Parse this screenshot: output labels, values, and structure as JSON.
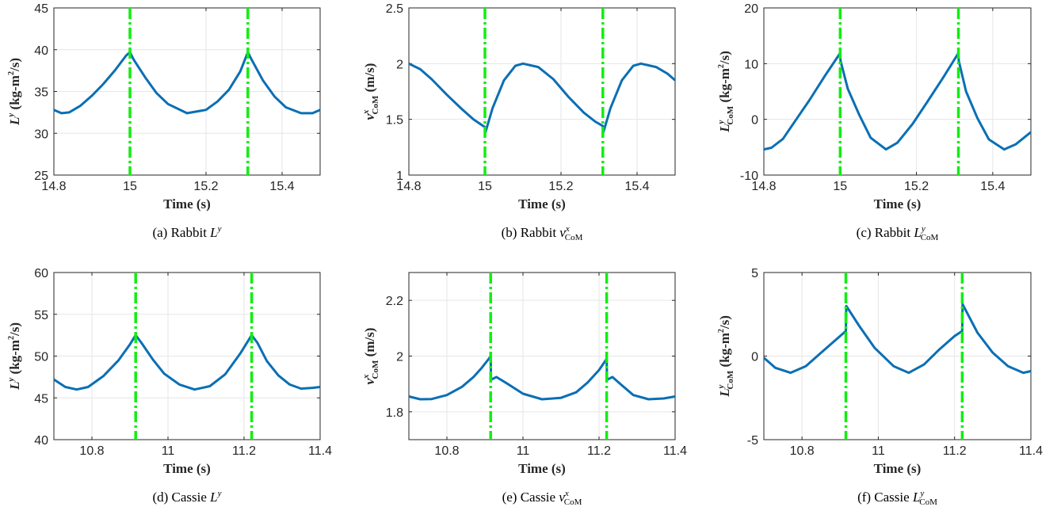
{
  "chart_data": [
    {
      "type": "line",
      "caption_prefix": "(a) Rabbit ",
      "caption_var": "L",
      "caption_sup": "y",
      "caption_sub": "",
      "xlabel": "Time (s)",
      "ylabel": "L^y (kg-m^2/s)",
      "ylabel_var": "L",
      "ylabel_sup": "y",
      "ylabel_sub": "",
      "ylabel_unit": "(kg-m",
      "ylabel_unit_sup": "2",
      "ylabel_unit_end": "/s)",
      "xlim": [
        14.8,
        15.5
      ],
      "ylim": [
        25,
        45
      ],
      "xticks": [
        14.8,
        15,
        15.2,
        15.4
      ],
      "xtick_labels": [
        "14.8",
        "15",
        "15.2",
        "15.4"
      ],
      "yticks": [
        25,
        30,
        35,
        40,
        45
      ],
      "ytick_labels": [
        "25",
        "30",
        "35",
        "40",
        "45"
      ],
      "event_lines_x": [
        15.0,
        15.31
      ],
      "series": [
        {
          "x": [
            14.8,
            14.82,
            14.84,
            14.87,
            14.9,
            14.93,
            14.96,
            14.99,
            15.0,
            15.01,
            15.04,
            15.07,
            15.1,
            15.15,
            15.2,
            15.23,
            15.26,
            15.29,
            15.31,
            15.32,
            15.35,
            15.38,
            15.41,
            15.45,
            15.48,
            15.5
          ],
          "y": [
            32.8,
            32.4,
            32.5,
            33.3,
            34.5,
            35.9,
            37.5,
            39.3,
            39.7,
            38.8,
            36.7,
            34.8,
            33.5,
            32.4,
            32.8,
            33.8,
            35.2,
            37.4,
            39.7,
            38.8,
            36.3,
            34.4,
            33.1,
            32.4,
            32.4,
            32.8
          ]
        }
      ]
    },
    {
      "type": "line",
      "caption_prefix": "(b) Rabbit ",
      "caption_var": "v",
      "caption_sup": "x",
      "caption_sub": "CoM",
      "xlabel": "Time (s)",
      "ylabel": "v^x_CoM (m/s)",
      "ylabel_var": "v",
      "ylabel_sup": "x",
      "ylabel_sub": "CoM",
      "ylabel_unit": "(m/s)",
      "ylabel_unit_sup": "",
      "ylabel_unit_end": "",
      "xlim": [
        14.8,
        15.5
      ],
      "ylim": [
        1,
        2.5
      ],
      "xticks": [
        14.8,
        15,
        15.2,
        15.4
      ],
      "xtick_labels": [
        "14.8",
        "15",
        "15.2",
        "15.4"
      ],
      "yticks": [
        1,
        1.5,
        2,
        2.5
      ],
      "ytick_labels": [
        "1",
        "1.5",
        "2",
        "2.5"
      ],
      "event_lines_x": [
        15.0,
        15.31
      ],
      "series": [
        {
          "x": [
            14.8,
            14.83,
            14.86,
            14.9,
            14.94,
            14.97,
            15.0,
            15.001,
            15.02,
            15.05,
            15.08,
            15.1,
            15.14,
            15.18,
            15.22,
            15.26,
            15.29,
            15.31,
            15.311,
            15.33,
            15.36,
            15.39,
            15.41,
            15.45,
            15.48,
            15.5
          ],
          "y": [
            2.0,
            1.95,
            1.86,
            1.72,
            1.59,
            1.5,
            1.43,
            1.38,
            1.6,
            1.85,
            1.98,
            2.0,
            1.97,
            1.86,
            1.7,
            1.56,
            1.48,
            1.44,
            1.38,
            1.6,
            1.85,
            1.98,
            2.0,
            1.97,
            1.91,
            1.85
          ]
        }
      ]
    },
    {
      "type": "line",
      "caption_prefix": "(c) Rabbit ",
      "caption_var": "L",
      "caption_sup": "y",
      "caption_sub": "CoM",
      "xlabel": "Time (s)",
      "ylabel": "L^y_CoM (kg-m^2/s)",
      "ylabel_var": "L",
      "ylabel_sup": "y",
      "ylabel_sub": "CoM",
      "ylabel_unit": "(kg-m",
      "ylabel_unit_sup": "2",
      "ylabel_unit_end": "/s)",
      "xlim": [
        14.8,
        15.5
      ],
      "ylim": [
        -10,
        20
      ],
      "xticks": [
        14.8,
        15,
        15.2,
        15.4
      ],
      "xtick_labels": [
        "14.8",
        "15",
        "15.2",
        "15.4"
      ],
      "yticks": [
        -10,
        0,
        10,
        20
      ],
      "ytick_labels": [
        "-10",
        "0",
        "10",
        "20"
      ],
      "event_lines_x": [
        15.0,
        15.31
      ],
      "series": [
        {
          "x": [
            14.8,
            14.82,
            14.85,
            14.88,
            14.92,
            14.96,
            15.0,
            15.001,
            15.02,
            15.05,
            15.08,
            15.12,
            15.15,
            15.19,
            15.23,
            15.27,
            15.31,
            15.311,
            15.33,
            15.36,
            15.39,
            15.43,
            15.46,
            15.5
          ],
          "y": [
            -5.4,
            -5.1,
            -3.5,
            -0.5,
            3.5,
            7.8,
            11.9,
            10.5,
            5.5,
            0.8,
            -3.3,
            -5.4,
            -4.2,
            -0.8,
            3.3,
            7.5,
            11.9,
            10.5,
            5.0,
            0.2,
            -3.6,
            -5.4,
            -4.5,
            -2.3
          ]
        }
      ]
    },
    {
      "type": "line",
      "caption_prefix": "(d) Cassie ",
      "caption_var": "L",
      "caption_sup": "y",
      "caption_sub": "",
      "xlabel": "Time (s)",
      "ylabel": "L^y (kg-m^2/s)",
      "ylabel_var": "L",
      "ylabel_sup": "y",
      "ylabel_sub": "",
      "ylabel_unit": "(kg-m",
      "ylabel_unit_sup": "2",
      "ylabel_unit_end": "/s)",
      "xlim": [
        10.7,
        11.4
      ],
      "ylim": [
        40,
        60
      ],
      "xticks": [
        10.8,
        11,
        11.2,
        11.4
      ],
      "xtick_labels": [
        "10.8",
        "11",
        "11.2",
        "11.4"
      ],
      "yticks": [
        40,
        45,
        50,
        55,
        60
      ],
      "ytick_labels": [
        "40",
        "45",
        "50",
        "55",
        "60"
      ],
      "event_lines_x": [
        10.915,
        11.22
      ],
      "series": [
        {
          "x": [
            10.7,
            10.73,
            10.76,
            10.79,
            10.83,
            10.87,
            10.9,
            10.915,
            10.93,
            10.96,
            10.99,
            11.03,
            11.07,
            11.11,
            11.15,
            11.19,
            11.22,
            11.235,
            11.26,
            11.29,
            11.32,
            11.35,
            11.38,
            11.4
          ],
          "y": [
            47.2,
            46.3,
            46.0,
            46.3,
            47.6,
            49.5,
            51.4,
            52.5,
            51.6,
            49.6,
            47.9,
            46.6,
            46.0,
            46.4,
            47.8,
            50.3,
            52.5,
            51.6,
            49.4,
            47.7,
            46.6,
            46.1,
            46.2,
            46.3
          ]
        }
      ]
    },
    {
      "type": "line",
      "caption_prefix": "(e) Cassie ",
      "caption_var": "v",
      "caption_sup": "x",
      "caption_sub": "CoM",
      "xlabel": "Time (s)",
      "ylabel": "v^x_CoM (m/s)",
      "ylabel_var": "v",
      "ylabel_sup": "x",
      "ylabel_sub": "CoM",
      "ylabel_unit": "(m/s)",
      "ylabel_unit_sup": "",
      "ylabel_unit_end": "",
      "xlim": [
        10.7,
        11.4
      ],
      "ylim": [
        1.7,
        2.3
      ],
      "xticks": [
        10.8,
        11,
        11.2,
        11.4
      ],
      "xtick_labels": [
        "10.8",
        "11",
        "11.2",
        "11.4"
      ],
      "yticks": [
        1.8,
        2.0,
        2.2
      ],
      "ytick_labels": [
        "1.8",
        "2",
        "2.2"
      ],
      "event_lines_x": [
        10.915,
        11.22
      ],
      "series": [
        {
          "x": [
            10.7,
            10.73,
            10.76,
            10.8,
            10.84,
            10.87,
            10.89,
            10.91,
            10.915,
            10.916,
            10.93,
            10.96,
            11.0,
            11.05,
            11.1,
            11.14,
            11.17,
            11.2,
            11.22,
            11.221,
            11.235,
            11.26,
            11.29,
            11.33,
            11.37,
            11.4
          ],
          "y": [
            1.855,
            1.845,
            1.846,
            1.86,
            1.89,
            1.925,
            1.955,
            1.99,
            2.0,
            1.915,
            1.925,
            1.9,
            1.865,
            1.845,
            1.85,
            1.87,
            1.905,
            1.95,
            1.99,
            1.915,
            1.925,
            1.895,
            1.86,
            1.845,
            1.848,
            1.855
          ]
        }
      ]
    },
    {
      "type": "line",
      "caption_prefix": "(f) Cassie ",
      "caption_var": "L",
      "caption_sup": "y",
      "caption_sub": "CoM",
      "xlabel": "Time (s)",
      "ylabel": "L^y_CoM (kg-m^2/s)",
      "ylabel_var": "L",
      "ylabel_sup": "y",
      "ylabel_sub": "CoM",
      "ylabel_unit": "(kg-m",
      "ylabel_unit_sup": "2",
      "ylabel_unit_end": "/s)",
      "xlim": [
        10.7,
        11.4
      ],
      "ylim": [
        -5,
        5
      ],
      "xticks": [
        10.8,
        11,
        11.2,
        11.4
      ],
      "xtick_labels": [
        "10.8",
        "11",
        "11.2",
        "11.4"
      ],
      "yticks": [
        -5,
        0,
        5
      ],
      "ytick_labels": [
        "-5",
        "0",
        "5"
      ],
      "event_lines_x": [
        10.915,
        11.22
      ],
      "series": [
        {
          "x": [
            10.7,
            10.73,
            10.77,
            10.81,
            10.85,
            10.89,
            10.915,
            10.916,
            10.95,
            10.99,
            11.04,
            11.08,
            11.12,
            11.16,
            11.2,
            11.22,
            11.221,
            11.26,
            11.3,
            11.34,
            11.38,
            11.4
          ],
          "y": [
            -0.1,
            -0.7,
            -1.0,
            -0.6,
            0.2,
            1.0,
            1.5,
            3.0,
            1.8,
            0.5,
            -0.6,
            -1.0,
            -0.5,
            0.4,
            1.2,
            1.5,
            3.1,
            1.4,
            0.2,
            -0.6,
            -1.0,
            -0.9
          ]
        }
      ]
    }
  ]
}
